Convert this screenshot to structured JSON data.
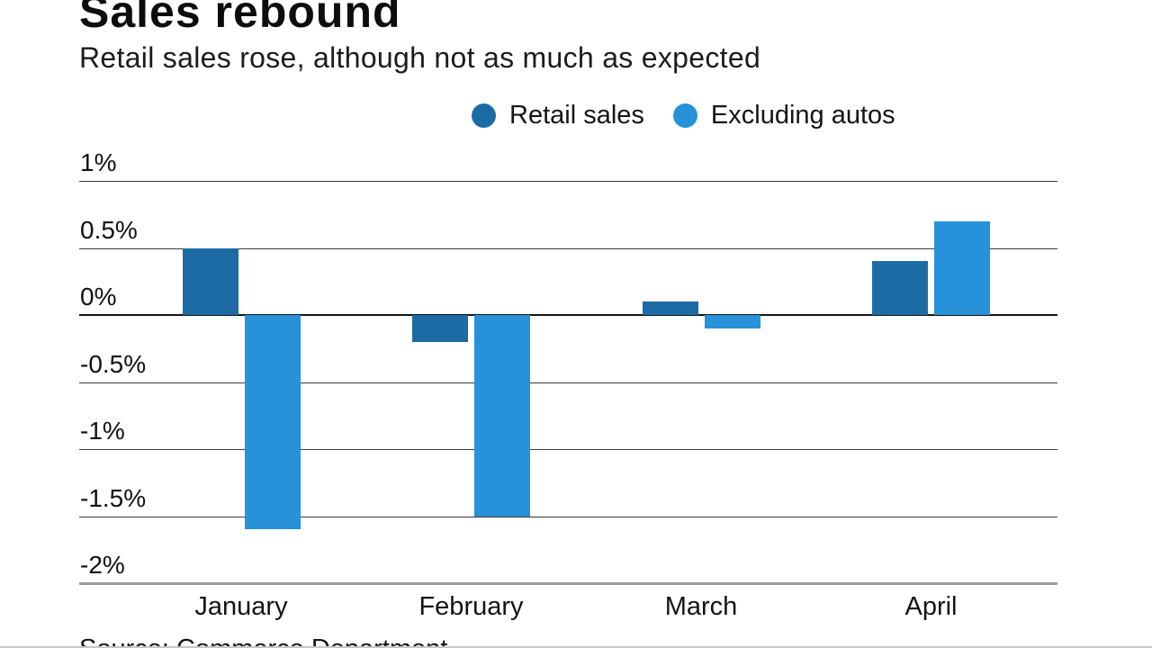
{
  "header": {
    "title": "Sales rebound",
    "subtitle": "Retail sales rose, although not as much as expected"
  },
  "legend": {
    "items": [
      {
        "label": "Retail sales",
        "color": "#1d6ba4"
      },
      {
        "label": "Excluding autos",
        "color": "#2791d9"
      }
    ]
  },
  "chart_data": {
    "type": "bar",
    "title": "Sales rebound",
    "subtitle": "Retail sales rose, although not as much as expected",
    "categories": [
      "January",
      "February",
      "March",
      "April"
    ],
    "series": [
      {
        "name": "Retail sales",
        "color": "#1d6ba4",
        "values": [
          0.5,
          -0.2,
          0.1,
          0.4
        ]
      },
      {
        "name": "Excluding autos",
        "color": "#2791d9",
        "values": [
          -1.6,
          -1.5,
          -0.1,
          0.7
        ]
      }
    ],
    "xlabel": "",
    "ylabel": "",
    "ylim": [
      -2,
      1
    ],
    "ytick_step": 0.5,
    "ytick_labels": [
      "1%",
      "0.5%",
      "0%",
      "-0.5%",
      "-1%",
      "-1.5%",
      "-2%"
    ],
    "unit": "%",
    "grid": true,
    "legend_position": "top"
  },
  "footer": {
    "source_label": "Source: Commerce Department"
  }
}
